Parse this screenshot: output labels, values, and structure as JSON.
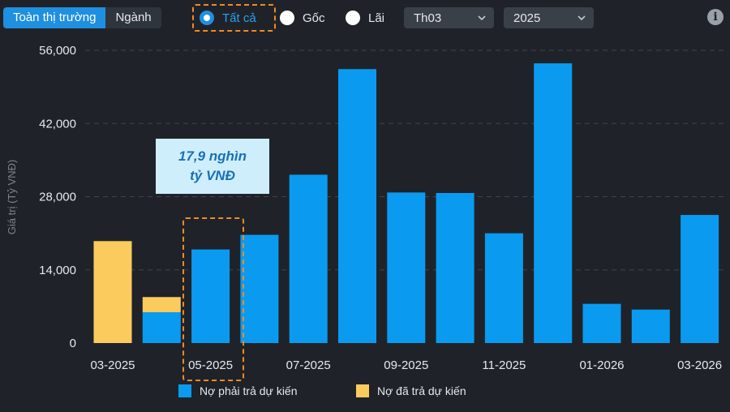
{
  "toolbar": {
    "tabs": [
      {
        "label": "Toàn thị trường",
        "active": true
      },
      {
        "label": "Ngành",
        "active": false
      }
    ],
    "radios": [
      {
        "label": "Tất cả",
        "checked": true
      },
      {
        "label": "Gốc",
        "checked": false
      },
      {
        "label": "Lãi",
        "checked": false
      }
    ],
    "month_select": "Th03",
    "year_select": "2025",
    "info_icon": "i"
  },
  "colors": {
    "accent": "#1f8fe0",
    "projected": "#0a9bf0",
    "paid": "#fbcb5e",
    "highlight": "#f08a24"
  },
  "annotation": {
    "line1": "17,9 nghìn",
    "line2": "tỷ VNĐ"
  },
  "chart_data": {
    "type": "bar",
    "stacked": true,
    "categories": [
      "03-2025",
      "04-2025",
      "05-2025",
      "06-2025",
      "07-2025",
      "08-2025",
      "09-2025",
      "10-2025",
      "11-2025",
      "12-2025",
      "01-2026",
      "02-2026",
      "03-2026"
    ],
    "x_tick_labels": [
      "03-2025",
      "05-2025",
      "07-2025",
      "09-2025",
      "11-2025",
      "01-2026",
      "03-2026"
    ],
    "series": [
      {
        "name": "Nợ phải trả dự kiến",
        "color": "#0a9bf0",
        "values": [
          0,
          5900,
          17900,
          20700,
          32200,
          52400,
          28800,
          28700,
          21000,
          53500,
          7500,
          6400,
          24500
        ]
      },
      {
        "name": "Nợ đã trả dự kiến",
        "color": "#fbcb5e",
        "values": [
          19500,
          2900,
          0,
          0,
          0,
          0,
          0,
          0,
          0,
          0,
          0,
          0,
          0
        ]
      }
    ],
    "ylabel": "Giá trị (Tỷ VNĐ)",
    "ylim": [
      0,
      56000
    ],
    "y_ticks": [
      0,
      14000,
      28000,
      42000,
      56000
    ],
    "y_tick_labels": [
      "0",
      "14,000",
      "28,000",
      "42,000",
      "56,000"
    ],
    "grid": true,
    "legend_position": "bottom"
  }
}
